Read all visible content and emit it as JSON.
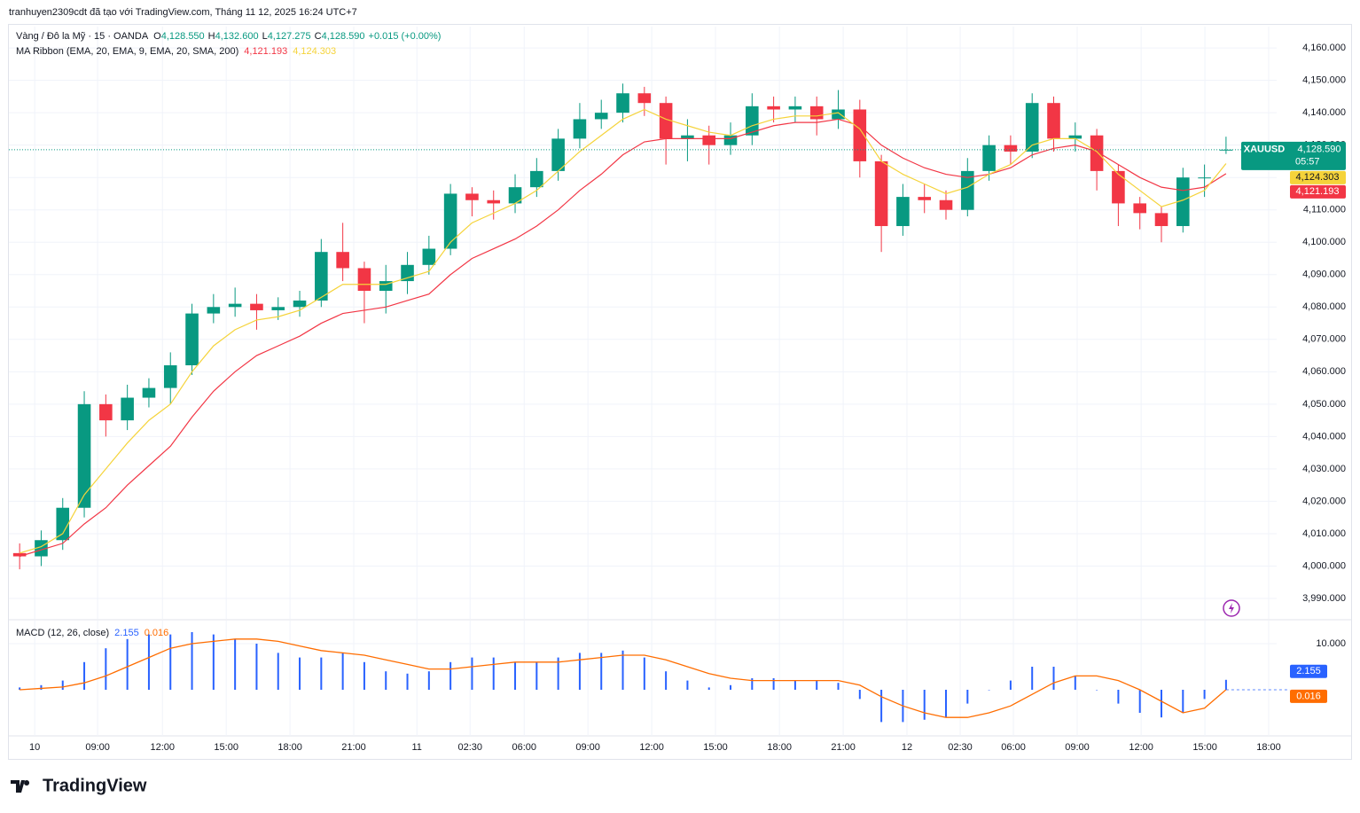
{
  "header": {
    "attribution": "tranhuyen2309cdt đã tạo với TradingView.com, Tháng 11 12, 2025 16:24 UTC+7"
  },
  "footer": {
    "brand": "TradingView"
  },
  "chart_data": [
    {
      "type": "candlestick",
      "symbol": "Vàng / Đô la Mỹ · 15 · OANDA",
      "ohlc_legend": [
        {
          "key": "O",
          "value": "4,128.550"
        },
        {
          "key": "H",
          "value": "4,132.600"
        },
        {
          "key": "L",
          "value": "4,127.275"
        },
        {
          "key": "C",
          "value": "4,128.590"
        }
      ],
      "change": "+0.015 (+0.00%)",
      "indicator": "MA Ribbon (EMA, 20, EMA, 9, EMA, 20, SMA, 200)",
      "x": [
        0,
        1,
        2,
        3,
        4,
        5,
        6,
        7,
        8,
        9,
        10,
        11,
        12,
        13,
        14,
        15,
        16,
        17,
        18,
        19,
        20,
        21,
        22,
        23,
        24,
        25,
        26,
        27,
        28,
        29,
        30,
        31,
        32,
        33,
        34,
        35,
        36,
        37,
        38,
        39,
        40,
        41,
        42,
        43,
        44,
        45,
        46,
        47,
        48,
        49,
        50,
        51,
        52,
        53,
        54,
        55,
        56
      ],
      "open": [
        4004,
        4003,
        4008,
        4018,
        4050,
        4045,
        4052,
        4055,
        4062,
        4078,
        4080,
        4081,
        4079,
        4080,
        4082,
        4097,
        4092,
        4085,
        4088,
        4093,
        4098,
        4115,
        4113,
        4112,
        4117,
        4122,
        4132,
        4138,
        4140,
        4146,
        4143,
        4132,
        4133,
        4130,
        4133,
        4142,
        4141,
        4142,
        4138,
        4141,
        4125,
        4105,
        4114,
        4113,
        4110,
        4122,
        4130,
        4128,
        4143,
        4132,
        4133,
        4122,
        4112,
        4109,
        4105,
        4120,
        4128.55
      ],
      "high": [
        4007,
        4011,
        4021,
        4054,
        4053,
        4056,
        4058,
        4066,
        4081,
        4084,
        4086,
        4084,
        4083,
        4085,
        4101,
        4106,
        4094,
        4093,
        4097,
        4102,
        4118,
        4117,
        4116,
        4121,
        4126,
        4135,
        4143,
        4144,
        4149,
        4148,
        4145,
        4138,
        4136,
        4137,
        4146,
        4145,
        4145,
        4145,
        4147,
        4144,
        4127,
        4118,
        4118,
        4116,
        4126,
        4133,
        4133,
        4146,
        4145,
        4137,
        4135,
        4124,
        4114,
        4111,
        4123,
        4124,
        4132.6
      ],
      "low": [
        3999,
        4000,
        4005,
        4015,
        4040,
        4042,
        4049,
        4050,
        4059,
        4075,
        4077,
        4073,
        4076,
        4077,
        4080,
        4088,
        4075,
        4078,
        4084,
        4090,
        4096,
        4108,
        4107,
        4109,
        4114,
        4119,
        4129,
        4135,
        4137,
        4139,
        4124,
        4125,
        4124,
        4127,
        4130,
        4137,
        4137,
        4133,
        4135,
        4120,
        4097,
        4102,
        4109,
        4107,
        4108,
        4119,
        4124,
        4126,
        4128,
        4128,
        4116,
        4105,
        4104,
        4100,
        4103,
        4114,
        4127.275
      ],
      "close": [
        4003,
        4008,
        4018,
        4050,
        4045,
        4052,
        4055,
        4062,
        4078,
        4080,
        4081,
        4079,
        4080,
        4082,
        4097,
        4092,
        4085,
        4088,
        4093,
        4098,
        4115,
        4113,
        4112,
        4117,
        4122,
        4132,
        4138,
        4140,
        4146,
        4143,
        4132,
        4133,
        4130,
        4133,
        4142,
        4141,
        4142,
        4138,
        4141,
        4125,
        4105,
        4114,
        4113,
        4110,
        4122,
        4130,
        4128,
        4143,
        4132,
        4133,
        4122,
        4112,
        4109,
        4105,
        4120,
        4120,
        4128.59
      ],
      "up_color": "#089981",
      "down_color": "#f23645",
      "series": [
        {
          "color": "#f23645",
          "last_label": "4,121.193",
          "values": [
            4003,
            4005,
            4007,
            4013,
            4018,
            4025,
            4031,
            4037,
            4046,
            4054,
            4060,
            4065,
            4068,
            4071,
            4075,
            4078,
            4079,
            4080,
            4082,
            4084,
            4090,
            4095,
            4098,
            4101,
            4105,
            4110,
            4116,
            4121,
            4127,
            4131,
            4132,
            4132,
            4132,
            4132,
            4134,
            4136,
            4137,
            4137,
            4138,
            4136,
            4130,
            4126,
            4123,
            4121,
            4120,
            4121,
            4123,
            4127,
            4129,
            4130,
            4128,
            4124,
            4120,
            4117,
            4116,
            4117,
            4121.193
          ]
        },
        {
          "color": "#f5d33a",
          "last_label": "4,124.303",
          "values": [
            4004,
            4006,
            4010,
            4022,
            4030,
            4038,
            4045,
            4050,
            4060,
            4068,
            4073,
            4076,
            4077,
            4079,
            4083,
            4087,
            4087,
            4087,
            4089,
            4091,
            4100,
            4106,
            4109,
            4112,
            4116,
            4122,
            4128,
            4133,
            4138,
            4141,
            4138,
            4136,
            4134,
            4133,
            4136,
            4138,
            4139,
            4139,
            4140,
            4135,
            4125,
            4121,
            4118,
            4115,
            4117,
            4121,
            4124,
            4130,
            4132,
            4132,
            4128,
            4121,
            4116,
            4111,
            4113,
            4116,
            4124.303
          ]
        }
      ],
      "ticker": "XAUUSD",
      "last_label": "4,128.590",
      "countdown": "05:57",
      "xlim": [
        -0.5,
        58.35
      ],
      "ylim": [
        3983.7,
        4166.6
      ],
      "yticks": [
        {
          "value": 4160,
          "label": "4,160.000"
        },
        {
          "value": 4150,
          "label": "4,150.000"
        },
        {
          "value": 4140,
          "label": "4,140.000"
        },
        {
          "value": 4130,
          "label": "4,130.000"
        },
        {
          "value": 4120,
          "label": "4,120.000"
        },
        {
          "value": 4110,
          "label": "4,110.000"
        },
        {
          "value": 4100,
          "label": "4,100.000"
        },
        {
          "value": 4090,
          "label": "4,090.000"
        },
        {
          "value": 4080,
          "label": "4,080.000"
        },
        {
          "value": 4070,
          "label": "4,070.000"
        },
        {
          "value": 4060,
          "label": "4,060.000"
        },
        {
          "value": 4050,
          "label": "4,050.000"
        },
        {
          "value": 4040,
          "label": "4,040.000"
        },
        {
          "value": 4030,
          "label": "4,030.000"
        },
        {
          "value": 4020,
          "label": "4,020.000"
        },
        {
          "value": 4010,
          "label": "4,010.000"
        },
        {
          "value": 4000,
          "label": "4,000.000"
        },
        {
          "value": 3990,
          "label": "3,990.000"
        }
      ],
      "xticks": [
        {
          "value": 0.7,
          "label": "10"
        },
        {
          "value": 3.62,
          "label": "09:00"
        },
        {
          "value": 6.63,
          "label": "12:00"
        },
        {
          "value": 9.59,
          "label": "15:00"
        },
        {
          "value": 12.55,
          "label": "18:00"
        },
        {
          "value": 15.51,
          "label": "21:00"
        },
        {
          "value": 18.44,
          "label": "11"
        },
        {
          "value": 20.91,
          "label": "02:30"
        },
        {
          "value": 23.42,
          "label": "06:00"
        },
        {
          "value": 26.38,
          "label": "09:00"
        },
        {
          "value": 29.34,
          "label": "12:00"
        },
        {
          "value": 32.3,
          "label": "15:00"
        },
        {
          "value": 35.27,
          "label": "18:00"
        },
        {
          "value": 38.23,
          "label": "21:00"
        },
        {
          "value": 41.19,
          "label": "12"
        },
        {
          "value": 43.66,
          "label": "02:30"
        },
        {
          "value": 46.13,
          "label": "06:00"
        },
        {
          "value": 49.09,
          "label": "09:00"
        },
        {
          "value": 52.06,
          "label": "12:00"
        },
        {
          "value": 55.02,
          "label": "15:00"
        },
        {
          "value": 57.98,
          "label": "18:00"
        }
      ],
      "grid": true
    },
    {
      "type": "macd",
      "title": "MACD (12, 26, close)",
      "x": [
        0,
        1,
        2,
        3,
        4,
        5,
        6,
        7,
        8,
        9,
        10,
        11,
        12,
        13,
        14,
        15,
        16,
        17,
        18,
        19,
        20,
        21,
        22,
        23,
        24,
        25,
        26,
        27,
        28,
        29,
        30,
        31,
        32,
        33,
        34,
        35,
        36,
        37,
        38,
        39,
        40,
        41,
        42,
        43,
        44,
        45,
        46,
        47,
        48,
        49,
        50,
        51,
        52,
        53,
        54,
        55,
        56
      ],
      "series": [
        {
          "style": "histogram",
          "color": "#2962ff",
          "last_label": "2.155",
          "values": [
            0.5,
            1,
            2,
            6,
            9,
            11,
            12,
            12,
            12.5,
            12,
            11,
            10,
            8,
            7,
            7,
            8,
            6,
            4,
            3.5,
            4,
            6,
            7,
            7,
            6,
            6,
            7,
            8,
            8,
            8.5,
            7,
            4,
            2,
            0.5,
            1,
            2.5,
            2.5,
            2,
            2,
            1.5,
            -2,
            -7,
            -7,
            -6.5,
            -6,
            -3,
            0,
            2,
            5,
            5,
            3,
            0,
            -3,
            -5,
            -6,
            -5,
            -2,
            2.155
          ]
        },
        {
          "style": "line",
          "color": "#ff6d00",
          "last_label": "0.016",
          "values": [
            0,
            0.3,
            0.6,
            1.5,
            3,
            5,
            7,
            9,
            10,
            10.5,
            11,
            11,
            10.5,
            9.5,
            8.5,
            8,
            7.5,
            6.5,
            5.5,
            4.5,
            4.5,
            5,
            5.5,
            6,
            6,
            6,
            6.5,
            7,
            7.5,
            7.5,
            6.5,
            5,
            3.5,
            2.5,
            2,
            2,
            2,
            2,
            2,
            1,
            -1.5,
            -3.5,
            -5,
            -6,
            -6,
            -5,
            -3.5,
            -1,
            1.5,
            3,
            3,
            2,
            0,
            -2.5,
            -5,
            -4,
            0.016
          ]
        }
      ],
      "xlim": [
        -0.5,
        58.35
      ],
      "ylim": [
        -10,
        15
      ],
      "yticks": [
        {
          "value": 10,
          "label": "10.000"
        }
      ],
      "grid": true
    }
  ]
}
